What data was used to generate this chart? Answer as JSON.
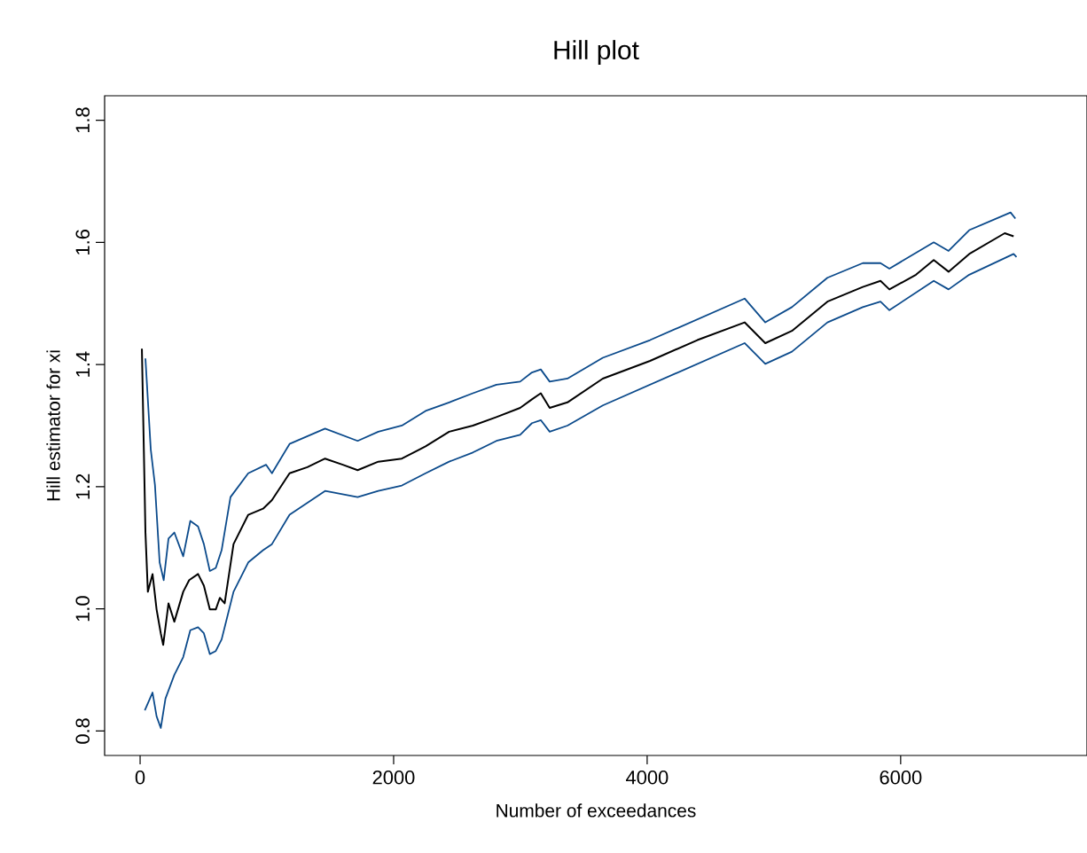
{
  "chart_data": {
    "type": "line",
    "title": "Hill plot",
    "xlabel": "Number of exceedances",
    "ylabel": "Hill estimator for xi",
    "xlim": [
      -280,
      7470
    ],
    "ylim": [
      0.76,
      1.84
    ],
    "xticks": [
      0,
      2000,
      4000,
      6000
    ],
    "yticks": [
      0.8,
      {
        "value": 1,
        "label": "1.0"
      },
      1.2,
      1.4,
      1.6,
      1.8
    ],
    "series": [
      {
        "color": "#0b4a8b",
        "x": [
          42,
          84,
          117,
          154,
          186,
          224,
          270,
          340,
          396,
          457,
          503,
          550,
          597,
          643,
          713,
          853,
          993,
          1040,
          1179,
          1459,
          1716,
          1879,
          2065,
          2252,
          2438,
          2625,
          2811,
          2998,
          3091,
          3161,
          3231,
          3371,
          3650,
          4023,
          4396,
          4769,
          4932,
          5142,
          5422,
          5701,
          5841,
          5911,
          6261,
          6378,
          6541,
          6867,
          6905
        ],
        "values": [
          1.41,
          1.261,
          1.203,
          1.076,
          1.047,
          1.115,
          1.125,
          1.086,
          1.144,
          1.135,
          1.106,
          1.062,
          1.067,
          1.096,
          1.183,
          1.222,
          1.236,
          1.222,
          1.27,
          1.295,
          1.275,
          1.29,
          1.3,
          1.324,
          1.338,
          1.353,
          1.367,
          1.372,
          1.387,
          1.392,
          1.372,
          1.377,
          1.411,
          1.44,
          1.474,
          1.508,
          1.469,
          1.494,
          1.542,
          1.566,
          1.566,
          1.557,
          1.6,
          1.586,
          1.62,
          1.649,
          1.639
        ]
      },
      {
        "color": "#000000",
        "x": [
          14,
          42,
          61,
          98,
          130,
          163,
          182,
          224,
          270,
          340,
          387,
          457,
          503,
          550,
          597,
          629,
          667,
          737,
          853,
          970,
          1040,
          1179,
          1319,
          1459,
          1599,
          1716,
          1879,
          2065,
          2252,
          2438,
          2625,
          2811,
          2998,
          3091,
          3161,
          3231,
          3371,
          3650,
          4023,
          4396,
          4769,
          4932,
          5142,
          5422,
          5701,
          5841,
          5911,
          6121,
          6261,
          6378,
          6541,
          6821,
          6891
        ],
        "values": [
          1.426,
          1.125,
          1.028,
          1.057,
          0.999,
          0.96,
          0.941,
          1.009,
          0.979,
          1.028,
          1.047,
          1.057,
          1.038,
          0.999,
          0.999,
          1.018,
          1.009,
          1.106,
          1.154,
          1.164,
          1.178,
          1.222,
          1.232,
          1.246,
          1.236,
          1.227,
          1.241,
          1.246,
          1.266,
          1.29,
          1.3,
          1.314,
          1.329,
          1.343,
          1.353,
          1.329,
          1.338,
          1.377,
          1.406,
          1.44,
          1.469,
          1.435,
          1.455,
          1.503,
          1.527,
          1.537,
          1.523,
          1.547,
          1.571,
          1.552,
          1.581,
          1.615,
          1.61
        ]
      },
      {
        "color": "#0b4a8b",
        "x": [
          37,
          98,
          130,
          163,
          200,
          270,
          340,
          396,
          457,
          503,
          550,
          597,
          643,
          737,
          853,
          970,
          1040,
          1179,
          1459,
          1716,
          1879,
          2065,
          2252,
          2438,
          2625,
          2811,
          2998,
          3091,
          3161,
          3231,
          3371,
          3650,
          4023,
          4396,
          4769,
          4932,
          5142,
          5422,
          5701,
          5841,
          5911,
          6261,
          6378,
          6541,
          6891,
          6914
        ],
        "values": [
          0.834,
          0.863,
          0.824,
          0.805,
          0.853,
          0.892,
          0.921,
          0.965,
          0.97,
          0.96,
          0.926,
          0.931,
          0.95,
          1.028,
          1.076,
          1.096,
          1.106,
          1.154,
          1.193,
          1.183,
          1.193,
          1.202,
          1.222,
          1.241,
          1.256,
          1.275,
          1.285,
          1.304,
          1.309,
          1.29,
          1.3,
          1.333,
          1.367,
          1.401,
          1.435,
          1.401,
          1.421,
          1.469,
          1.494,
          1.503,
          1.489,
          1.537,
          1.523,
          1.547,
          1.581,
          1.576
        ]
      }
    ]
  }
}
